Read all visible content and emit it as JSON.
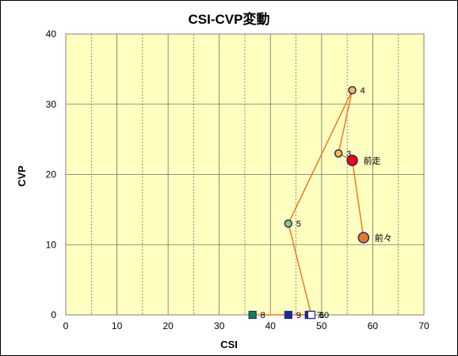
{
  "chart_data": {
    "type": "scatter",
    "title": "CSI-CVP変動",
    "xlabel": "CSI",
    "ylabel": "CVP",
    "xlim": [
      0,
      70
    ],
    "ylim": [
      0,
      40
    ],
    "x_ticks": [
      "0",
      "10",
      "20",
      "30",
      "40",
      "50",
      "60",
      "70"
    ],
    "y_ticks": [
      "0",
      "10",
      "20",
      "30",
      "40"
    ],
    "grid": true,
    "plot_background": "#ffffc0",
    "line_color": "#f07820",
    "path": [
      {
        "label": "前々",
        "x": 58.2,
        "y": 11.0
      },
      {
        "label": "前走",
        "x": 56.0,
        "y": 22.0
      },
      {
        "label": "3",
        "x": 53.3,
        "y": 23.0
      },
      {
        "label": "4",
        "x": 56.0,
        "y": 32.0
      },
      {
        "label": "5",
        "x": 43.5,
        "y": 13.0
      },
      {
        "label": "6",
        "x": 48.0,
        "y": 0
      },
      {
        "label": "7",
        "x": 47.5,
        "y": 0
      },
      {
        "label": "8",
        "x": 36.5,
        "y": 0
      },
      {
        "label": "9",
        "x": 43.5,
        "y": 0
      },
      {
        "label": "10",
        "x": 48.0,
        "y": 0
      }
    ],
    "points": [
      {
        "label": "前々",
        "x": 58.2,
        "y": 11.0,
        "shape": "circle",
        "size": "large",
        "fill": "#f07820",
        "stroke": "#1a2a9a"
      },
      {
        "label": "前走",
        "x": 56.0,
        "y": 22.0,
        "shape": "circle",
        "size": "large",
        "fill": "#ff0000",
        "stroke": "#1a2a9a"
      },
      {
        "label": "3",
        "x": 53.3,
        "y": 23.0,
        "shape": "circle",
        "size": "small",
        "fill": "#ffc020",
        "stroke": "#1a2a9a"
      },
      {
        "label": "4",
        "x": 56.0,
        "y": 32.0,
        "shape": "circle",
        "size": "small",
        "fill": "#ffc020",
        "stroke": "#1a2a9a"
      },
      {
        "label": "5",
        "x": 43.5,
        "y": 13.0,
        "shape": "circle",
        "size": "small",
        "fill": "#90d050",
        "stroke": "#1a2a9a"
      },
      {
        "label": "8",
        "x": 36.5,
        "y": 0,
        "shape": "square",
        "size": "small",
        "fill": "#1a8040",
        "stroke": "#1a2a9a"
      },
      {
        "label": "9",
        "x": 43.5,
        "y": 0,
        "shape": "square",
        "size": "small",
        "fill": "#1a2a9a",
        "stroke": "#1a2a9a"
      },
      {
        "label": "7",
        "x": 47.5,
        "y": 0,
        "shape": "square",
        "size": "small",
        "fill": "#1a2a9a",
        "stroke": "#1a2a9a"
      },
      {
        "label": "6",
        "x": 48.0,
        "y": 0,
        "shape": "square",
        "size": "small",
        "fill": "#1a2a9a",
        "stroke": "#1a2a9a"
      },
      {
        "label": "10",
        "x": 48.0,
        "y": 0,
        "shape": "square",
        "size": "small",
        "fill": "#ffffff",
        "stroke": "#1a2a9a"
      }
    ]
  }
}
